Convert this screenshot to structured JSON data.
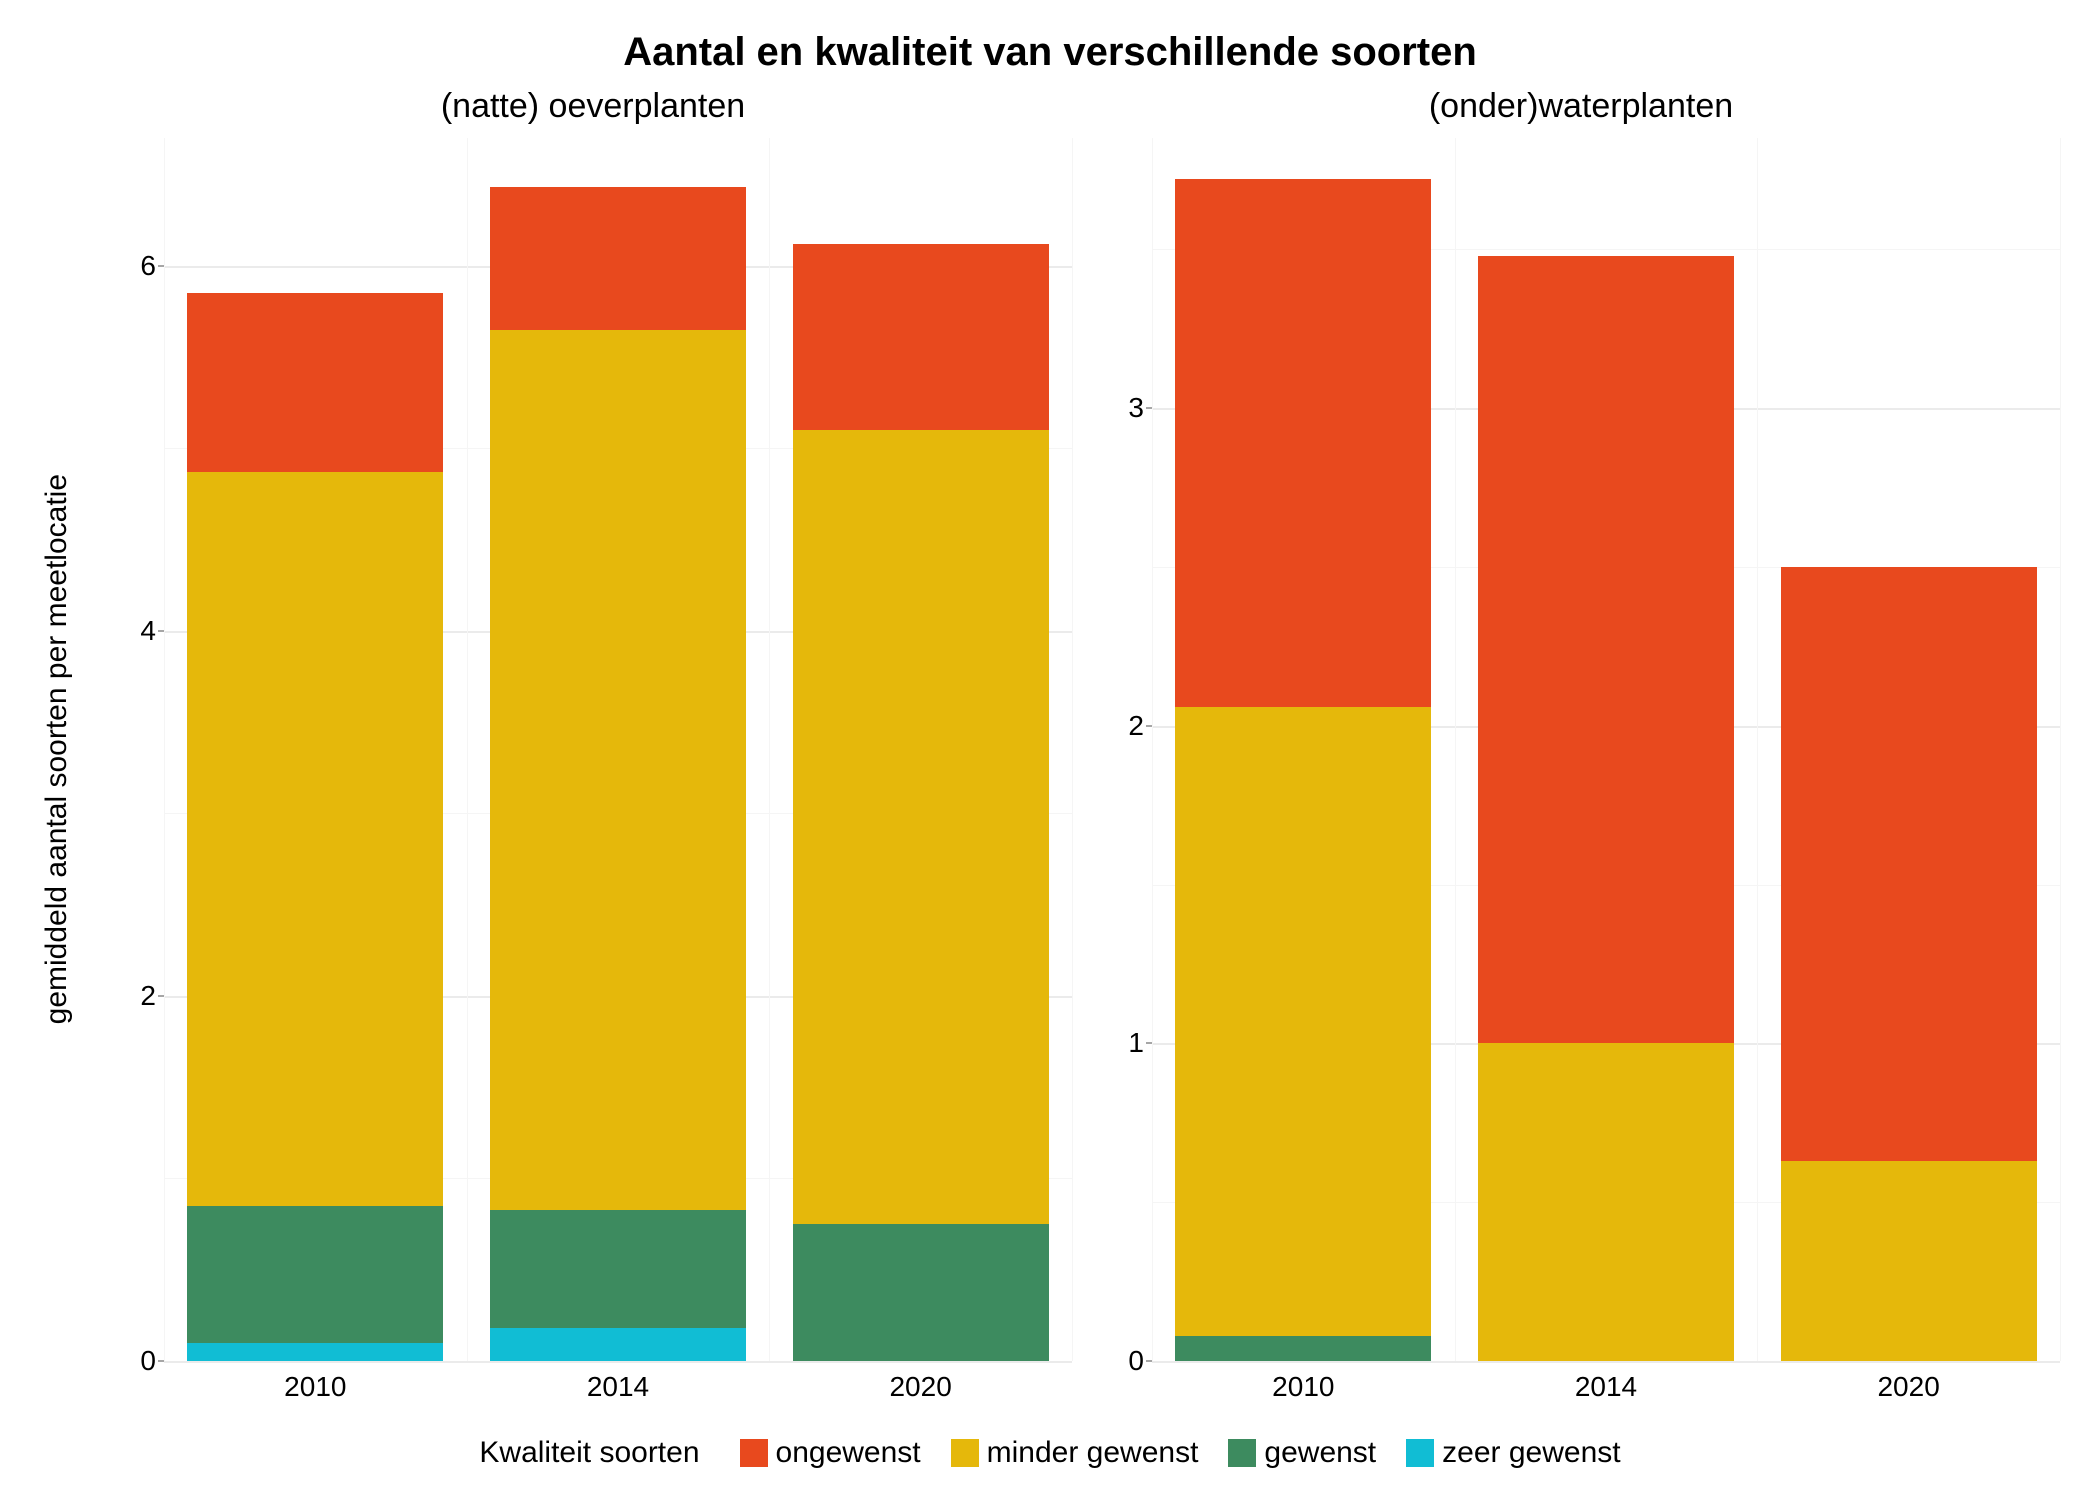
{
  "title": "Aantal en kwaliteit van verschillende soorten",
  "title_fontsize": 40,
  "y_axis_label": "gemiddeld aantal soorten per meetlocatie",
  "axis_label_fontsize": 30,
  "tick_fontsize": 28,
  "panel_title_fontsize": 34,
  "background_color": "#ffffff",
  "grid_color_major": "#ebebeb",
  "grid_color_minor": "#f5f5f5",
  "text_color": "#000000",
  "categories": {
    "ongewenst": {
      "label": "ongewenst",
      "color": "#e8491e"
    },
    "minder_gewenst": {
      "label": "minder gewenst",
      "color": "#e5b80b"
    },
    "gewenst": {
      "label": "gewenst",
      "color": "#3d8b5f"
    },
    "zeer_gewenst": {
      "label": "zeer gewenst",
      "color": "#11bdd4"
    }
  },
  "legend": {
    "title": "Kwaliteit soorten",
    "fontsize": 30,
    "order": [
      "ongewenst",
      "minder_gewenst",
      "gewenst",
      "zeer_gewenst"
    ]
  },
  "panels": [
    {
      "title": "(natte) oeverplanten",
      "ylim": [
        0,
        6.7
      ],
      "yticks": [
        0,
        2,
        4,
        6
      ],
      "yticks_minor": [
        1,
        3,
        5
      ],
      "x_labels": [
        "2010",
        "2014",
        "2020"
      ],
      "bars": [
        {
          "x": "2010",
          "stack": [
            {
              "cat": "zeer_gewenst",
              "value": 0.1
            },
            {
              "cat": "gewenst",
              "value": 0.75
            },
            {
              "cat": "minder_gewenst",
              "value": 4.02
            },
            {
              "cat": "ongewenst",
              "value": 0.98
            }
          ]
        },
        {
          "x": "2014",
          "stack": [
            {
              "cat": "zeer_gewenst",
              "value": 0.18
            },
            {
              "cat": "gewenst",
              "value": 0.65
            },
            {
              "cat": "minder_gewenst",
              "value": 4.82
            },
            {
              "cat": "ongewenst",
              "value": 0.78
            }
          ]
        },
        {
          "x": "2020",
          "stack": [
            {
              "cat": "zeer_gewenst",
              "value": 0.0
            },
            {
              "cat": "gewenst",
              "value": 0.75
            },
            {
              "cat": "minder_gewenst",
              "value": 4.35
            },
            {
              "cat": "ongewenst",
              "value": 1.02
            }
          ]
        }
      ]
    },
    {
      "title": "(onder)waterplanten",
      "ylim": [
        0,
        3.85
      ],
      "yticks": [
        0,
        1,
        2,
        3
      ],
      "yticks_minor": [
        0.5,
        1.5,
        2.5,
        3.5
      ],
      "x_labels": [
        "2010",
        "2014",
        "2020"
      ],
      "bars": [
        {
          "x": "2010",
          "stack": [
            {
              "cat": "zeer_gewenst",
              "value": 0.0
            },
            {
              "cat": "gewenst",
              "value": 0.08
            },
            {
              "cat": "minder_gewenst",
              "value": 1.98
            },
            {
              "cat": "ongewenst",
              "value": 1.66
            }
          ]
        },
        {
          "x": "2014",
          "stack": [
            {
              "cat": "zeer_gewenst",
              "value": 0.0
            },
            {
              "cat": "gewenst",
              "value": 0.0
            },
            {
              "cat": "minder_gewenst",
              "value": 1.0
            },
            {
              "cat": "ongewenst",
              "value": 2.48
            }
          ]
        },
        {
          "x": "2020",
          "stack": [
            {
              "cat": "zeer_gewenst",
              "value": 0.0
            },
            {
              "cat": "gewenst",
              "value": 0.0
            },
            {
              "cat": "minder_gewenst",
              "value": 0.63
            },
            {
              "cat": "ongewenst",
              "value": 1.87
            }
          ]
        }
      ]
    }
  ]
}
